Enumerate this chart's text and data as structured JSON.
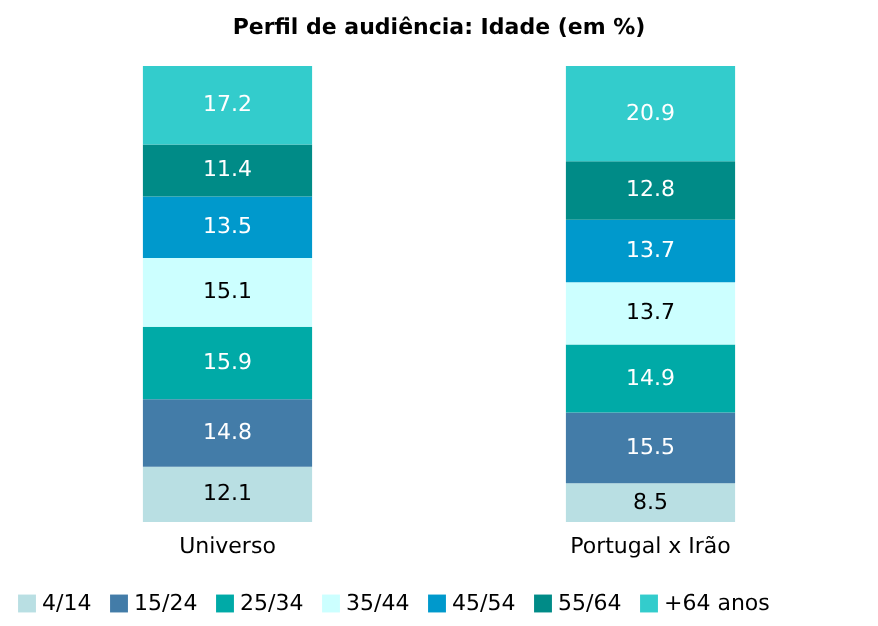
{
  "chart_data": {
    "type": "bar",
    "title": "Perfil de audiência: Idade (em %)",
    "categories": [
      "Universo",
      "Portugal x Irão"
    ],
    "stacked": true,
    "data_labels": true,
    "legend": "bottom",
    "grid": false,
    "series": [
      {
        "name": "4/14",
        "color": "#b9dfe3",
        "values": [
          12.1,
          8.5
        ]
      },
      {
        "name": "15/24",
        "color": "#437ca8",
        "values": [
          14.8,
          15.5
        ]
      },
      {
        "name": "25/34",
        "color": "#00aaa7",
        "values": [
          15.9,
          14.9
        ]
      },
      {
        "name": "35/44",
        "color": "#ccffff",
        "values": [
          15.1,
          13.7
        ]
      },
      {
        "name": "45/54",
        "color": "#0099cc",
        "values": [
          13.5,
          13.7
        ]
      },
      {
        "name": "55/64",
        "color": "#008b87",
        "values": [
          11.4,
          12.8
        ]
      },
      {
        "name": "+64 anos",
        "color": "#33cccc",
        "values": [
          17.2,
          20.9
        ]
      }
    ]
  }
}
